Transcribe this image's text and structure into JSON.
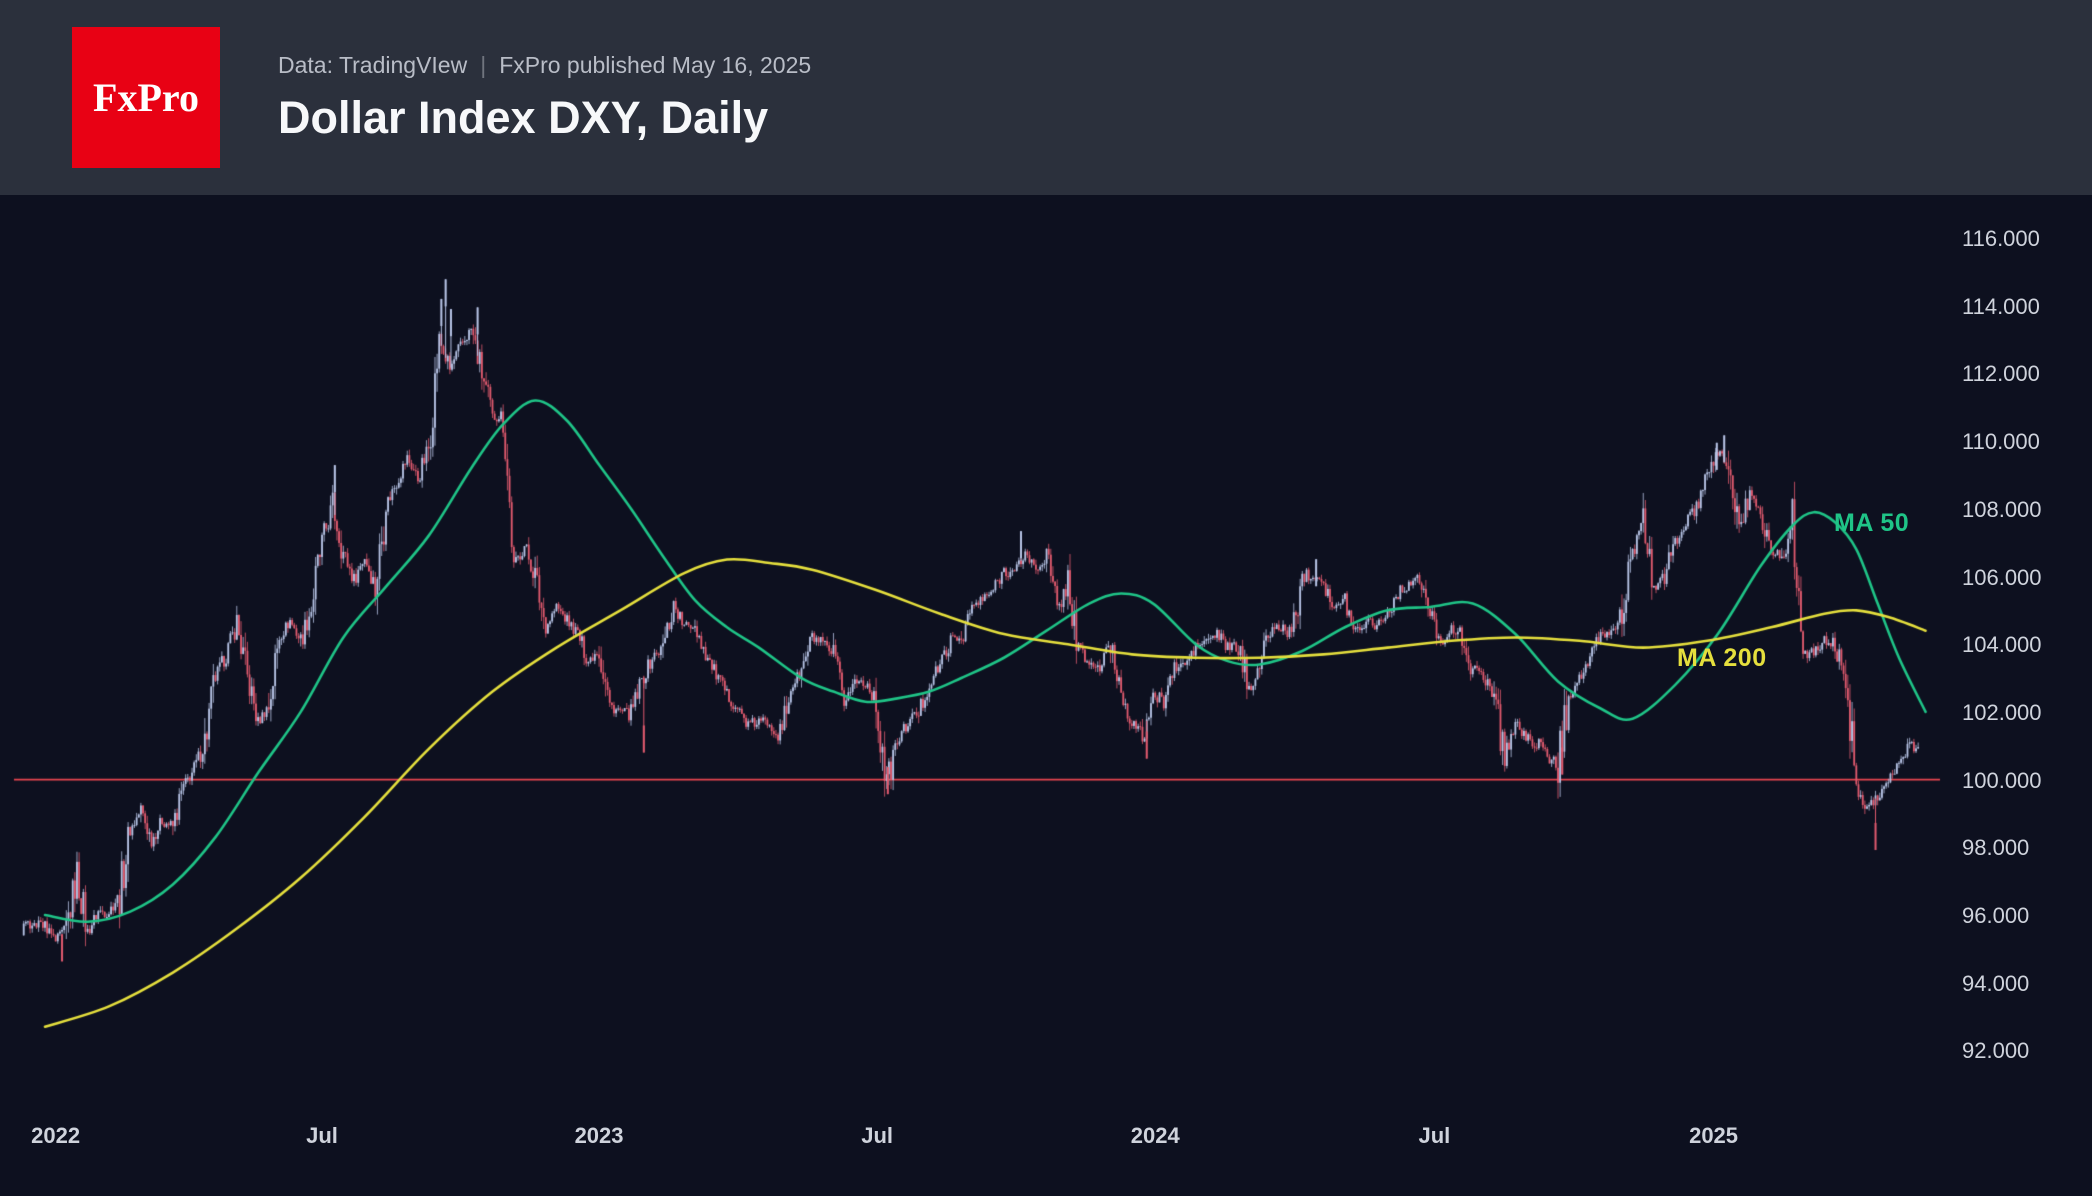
{
  "header": {
    "logo_text": "FxPro",
    "logo_color": "#e80114",
    "bg_color": "#2b303c",
    "data_source": "Data: TradingVIew",
    "separator": "|",
    "published": "FxPro published May 16, 2025",
    "title": "Dollar Index DXY, Daily"
  },
  "chart_data": {
    "type": "candlestick",
    "title": "Dollar Index DXY, Daily",
    "y_axis": {
      "min": 92,
      "max": 116,
      "step": 2,
      "tick_labels": [
        "116.000",
        "114.000",
        "112.000",
        "110.000",
        "108.000",
        "106.000",
        "104.000",
        "102.000",
        "100.000",
        "98.000",
        "96.000",
        "94.000",
        "92.000"
      ]
    },
    "x_axis": {
      "ticks": [
        {
          "label": "2022",
          "week": 1
        },
        {
          "label": "Jul",
          "week": 26
        },
        {
          "label": "2023",
          "week": 52
        },
        {
          "label": "Jul",
          "week": 78.1
        },
        {
          "label": "2024",
          "week": 104.2
        },
        {
          "label": "Jul",
          "week": 130.4
        },
        {
          "label": "2025",
          "week": 156.6
        }
      ]
    },
    "reference_line": {
      "price": 100.0,
      "color": "#e8444f"
    },
    "weekly_closes": [
      95.7,
      95.2,
      95.6,
      97.2,
      95.5,
      96.1,
      96.1,
      96.6,
      98.5,
      99.1,
      98.2,
      98.8,
      98.6,
      99.8,
      100.3,
      101.1,
      103.0,
      103.7,
      104.6,
      103.0,
      101.7,
      102.2,
      104.2,
      104.7,
      104.1,
      105.1,
      107.0,
      108.1,
      106.7,
      105.9,
      106.6,
      105.7,
      108.1,
      108.8,
      109.5,
      108.9,
      109.8,
      113.0,
      112.1,
      112.8,
      113.3,
      112.0,
      110.7,
      110.8,
      106.3,
      106.9,
      106.0,
      104.5,
      105.1,
      104.7,
      104.3,
      103.5,
      103.9,
      102.2,
      102.0,
      101.9,
      102.9,
      103.6,
      103.9,
      105.2,
      104.5,
      104.6,
      103.7,
      103.1,
      102.5,
      102.1,
      101.6,
      101.7,
      101.7,
      101.2,
      102.7,
      103.2,
      104.2,
      104.0,
      103.6,
      102.3,
      102.9,
      102.9,
      102.3,
      99.9,
      101.1,
      101.7,
      102.0,
      102.8,
      103.4,
      104.1,
      104.2,
      105.1,
      105.3,
      105.6,
      106.2,
      106.1,
      106.7,
      106.2,
      106.6,
      105.0,
      105.8,
      103.9,
      103.4,
      103.3,
      104.0,
      102.6,
      101.7,
      101.3,
      102.4,
      102.4,
      103.3,
      103.4,
      103.9,
      104.1,
      104.3,
      103.9,
      103.9,
      102.7,
      103.4,
      104.4,
      104.5,
      104.3,
      106.0,
      106.1,
      105.9,
      105.0,
      105.3,
      104.4,
      104.7,
      104.6,
      104.9,
      105.5,
      105.8,
      105.9,
      104.9,
      104.1,
      104.4,
      104.3,
      103.2,
      103.1,
      102.5,
      100.7,
      101.7,
      101.2,
      101.1,
      100.7,
      100.4,
      102.5,
      103.0,
      103.5,
      104.3,
      104.3,
      105.0,
      106.7,
      107.5,
      105.7,
      106.0,
      107.0,
      107.6,
      108.0,
      108.9,
      109.7,
      109.3,
      107.4,
      108.4,
      108.0,
      106.7,
      106.6,
      107.6,
      103.8,
      103.7,
      104.1,
      104.0,
      103.0,
      99.8,
      99.2,
      99.5,
      100.0,
      100.4,
      101.0
    ],
    "extreme_wicks": [
      {
        "week": 1.6,
        "price": 94.63
      },
      {
        "week": 27.2,
        "price": 109.29
      },
      {
        "week": 37.2,
        "price": 114.2
      },
      {
        "week": 37.6,
        "price": 114.78
      },
      {
        "week": 38.1,
        "price": 113.9
      },
      {
        "week": 40.6,
        "price": 113.95
      },
      {
        "week": 56.2,
        "price": 100.8
      },
      {
        "week": 79.1,
        "price": 99.57
      },
      {
        "week": 91.6,
        "price": 107.34
      },
      {
        "week": 103.4,
        "price": 100.62
      },
      {
        "week": 119.3,
        "price": 106.51
      },
      {
        "week": 142.4,
        "price": 100.15
      },
      {
        "week": 156.9,
        "price": 109.95
      },
      {
        "week": 157.6,
        "price": 110.17
      },
      {
        "week": 171.8,
        "price": 97.92
      }
    ],
    "series": [
      {
        "name": "MA 50",
        "color": "#1fc487",
        "points": [
          [
            0,
            96.0
          ],
          [
            4,
            95.8
          ],
          [
            8,
            96.1
          ],
          [
            12,
            96.9
          ],
          [
            16,
            98.3
          ],
          [
            20,
            100.2
          ],
          [
            24,
            102.0
          ],
          [
            28,
            104.2
          ],
          [
            32,
            105.7
          ],
          [
            36,
            107.2
          ],
          [
            40,
            109.2
          ],
          [
            43,
            110.5
          ],
          [
            46,
            111.2
          ],
          [
            49,
            110.6
          ],
          [
            52,
            109.3
          ],
          [
            55,
            108.0
          ],
          [
            58,
            106.6
          ],
          [
            61,
            105.3
          ],
          [
            64,
            104.5
          ],
          [
            67,
            103.9
          ],
          [
            71,
            103.0
          ],
          [
            74,
            102.6
          ],
          [
            77,
            102.3
          ],
          [
            80,
            102.4
          ],
          [
            83,
            102.6
          ],
          [
            86,
            103.0
          ],
          [
            90,
            103.6
          ],
          [
            94,
            104.4
          ],
          [
            98,
            105.2
          ],
          [
            101,
            105.5
          ],
          [
            104,
            105.2
          ],
          [
            108,
            104.0
          ],
          [
            111,
            103.5
          ],
          [
            114,
            103.4
          ],
          [
            118,
            103.8
          ],
          [
            122,
            104.5
          ],
          [
            126,
            105.0
          ],
          [
            130,
            105.1
          ],
          [
            134,
            105.2
          ],
          [
            138,
            104.3
          ],
          [
            142,
            102.9
          ],
          [
            146,
            102.1
          ],
          [
            149,
            101.8
          ],
          [
            153,
            102.8
          ],
          [
            157,
            104.3
          ],
          [
            161,
            106.3
          ],
          [
            164,
            107.5
          ],
          [
            166,
            107.9
          ],
          [
            168,
            107.6
          ],
          [
            170,
            106.8
          ],
          [
            172,
            105.2
          ],
          [
            174,
            103.6
          ],
          [
            176.5,
            102.0
          ]
        ]
      },
      {
        "name": "MA 200",
        "color": "#e5df3d",
        "points": [
          [
            0,
            92.7
          ],
          [
            6,
            93.3
          ],
          [
            12,
            94.3
          ],
          [
            18,
            95.6
          ],
          [
            24,
            97.1
          ],
          [
            30,
            98.9
          ],
          [
            36,
            100.9
          ],
          [
            42,
            102.6
          ],
          [
            48,
            103.9
          ],
          [
            54,
            105.0
          ],
          [
            60,
            106.1
          ],
          [
            64,
            106.5
          ],
          [
            68,
            106.4
          ],
          [
            72,
            106.2
          ],
          [
            78,
            105.6
          ],
          [
            84,
            104.9
          ],
          [
            90,
            104.3
          ],
          [
            96,
            104.0
          ],
          [
            102,
            103.7
          ],
          [
            108,
            103.6
          ],
          [
            114,
            103.6
          ],
          [
            120,
            103.7
          ],
          [
            126,
            103.9
          ],
          [
            132,
            104.1
          ],
          [
            138,
            104.2
          ],
          [
            144,
            104.1
          ],
          [
            150,
            103.9
          ],
          [
            156,
            104.1
          ],
          [
            162,
            104.5
          ],
          [
            167,
            104.9
          ],
          [
            170,
            105.0
          ],
          [
            173,
            104.8
          ],
          [
            176.5,
            104.4
          ]
        ]
      }
    ],
    "colors": {
      "background": "#0d101f",
      "up_candle": "#b7c4e6",
      "down_candle": "#e15a6e",
      "axis_text": "#cfd3dc"
    }
  }
}
